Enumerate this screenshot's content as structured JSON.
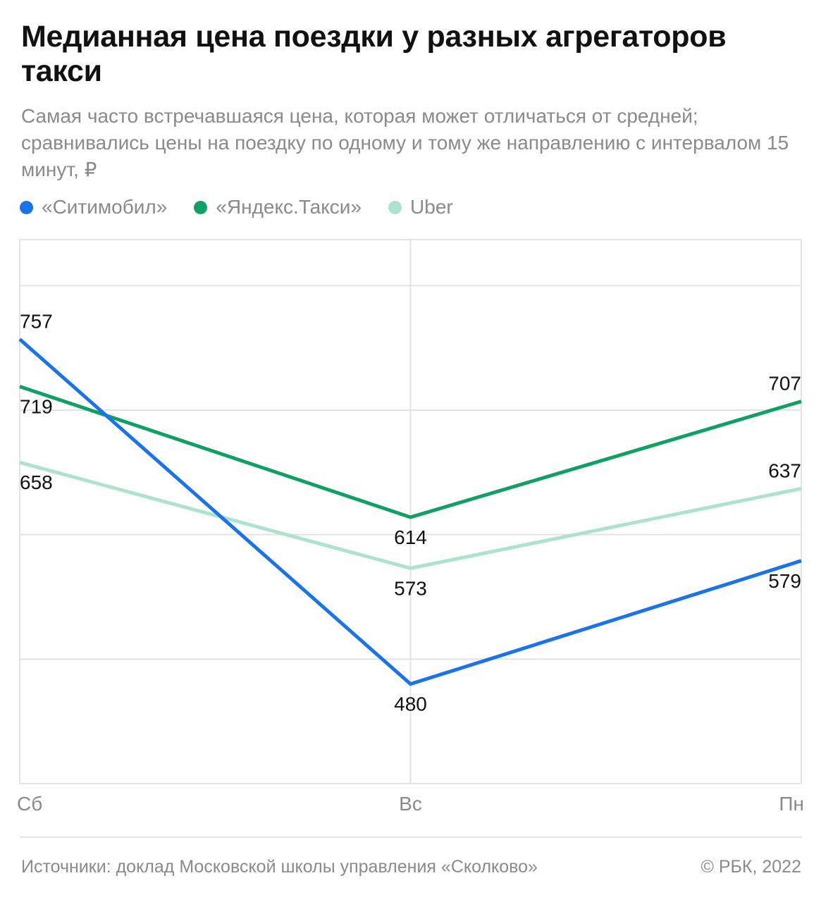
{
  "header": {
    "title": "Медианная цена поездки у разных агрегаторов такси",
    "subtitle": "Самая часто встречавшаяся цена, которая может отличаться от средней; сравнивались цены на поездку по одному и тому же направлению с интервалом 15 минут, ₽"
  },
  "legend": [
    {
      "label": "«Ситимобил»",
      "color": "#1a73e8"
    },
    {
      "label": "«Яндекс.Такси»",
      "color": "#10a064"
    },
    {
      "label": "Uber",
      "color": "#ade3cc"
    }
  ],
  "chart_data": {
    "type": "line",
    "title": "Медианная цена поездки у разных агрегаторов такси",
    "xlabel": "",
    "ylabel": "₽",
    "categories": [
      "Сб",
      "Вс",
      "Пн"
    ],
    "ylim": [
      400,
      837
    ],
    "gridlines": [
      500,
      600,
      700,
      800
    ],
    "series": [
      {
        "name": "«Ситимобил»",
        "color": "#1a73e8",
        "values": [
          757,
          480,
          579
        ],
        "label_pos": [
          "above",
          "below",
          "below"
        ]
      },
      {
        "name": "«Яндекс.Такси»",
        "color": "#10a064",
        "values": [
          719,
          614,
          707
        ],
        "label_pos": [
          "below",
          "below",
          "above"
        ]
      },
      {
        "name": "Uber",
        "color": "#ade3cc",
        "values": [
          658,
          573,
          637
        ],
        "label_pos": [
          "below",
          "below",
          "above"
        ]
      }
    ]
  },
  "footer": {
    "source": "Источники: доклад Московской школы управления «Сколково»",
    "copyright": "© РБК, 2022"
  }
}
